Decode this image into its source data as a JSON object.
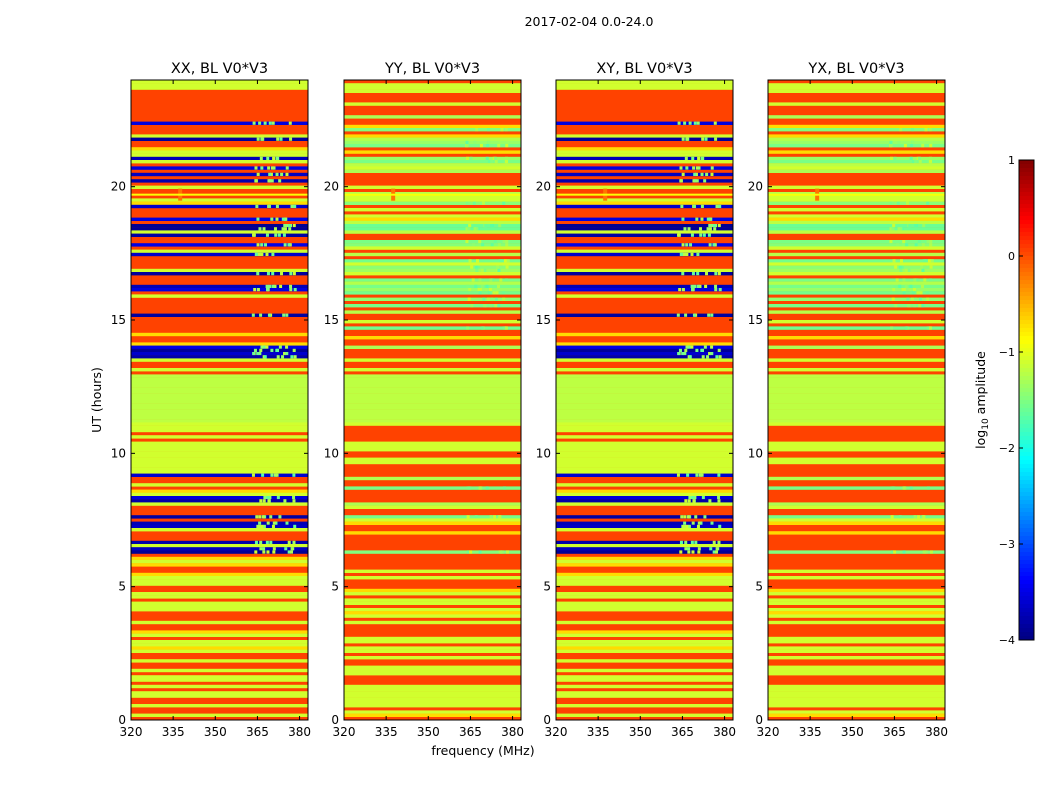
{
  "chart_data": {
    "type": "heatmap",
    "suptitle": "2017-02-04 0.0-24.0",
    "xlabel": "frequency (MHz)",
    "ylabel": "UT (hours)",
    "xlim": [
      320,
      383
    ],
    "ylim": [
      0,
      24
    ],
    "xticks": [
      "320",
      "335",
      "350",
      "365",
      "380"
    ],
    "yticks": [
      "0",
      "5",
      "10",
      "15",
      "20"
    ],
    "colorbar": {
      "label": "log10 amplitude",
      "label_base": "log",
      "label_sub": "10",
      "label_rest": " amplitude",
      "range": [
        -4,
        1
      ],
      "ticks": [
        "−4",
        "−3",
        "−2",
        "−1",
        "0",
        "1"
      ],
      "colormap": "jet"
    },
    "panels": [
      {
        "title": "XX, BL V0*V3",
        "pol": "XX",
        "band_value": 0.05,
        "rfi_value": -3.9,
        "rfi_mix": 0.7
      },
      {
        "title": "YY, BL V0*V3",
        "pol": "YY",
        "band_value": 0.05,
        "rfi_value": -1.6,
        "rfi_mix": 0.55
      },
      {
        "title": "XY, BL V0*V3",
        "pol": "XY",
        "band_value": 0.05,
        "rfi_value": -3.9,
        "rfi_mix": 0.7
      },
      {
        "title": "YX, BL V0*V3",
        "pol": "YX",
        "band_value": 0.05,
        "rfi_value": -1.6,
        "rfi_mix": 0.55
      }
    ],
    "features": {
      "gap_hours": [
        11.2,
        13.0
      ],
      "gap_value": -1.2,
      "dense_rfi_hours": [
        18.3,
        18.6
      ],
      "bright_feature": {
        "hour": 19.7,
        "freq_mhz": 337.5,
        "value": -0.2
      },
      "rfi_channel_range_mhz": [
        363,
        378
      ],
      "rfi_time_ranges": [
        [
          6.2,
          9.3
        ],
        [
          13.5,
          18.8
        ],
        [
          19.0,
          22.8
        ]
      ]
    }
  }
}
